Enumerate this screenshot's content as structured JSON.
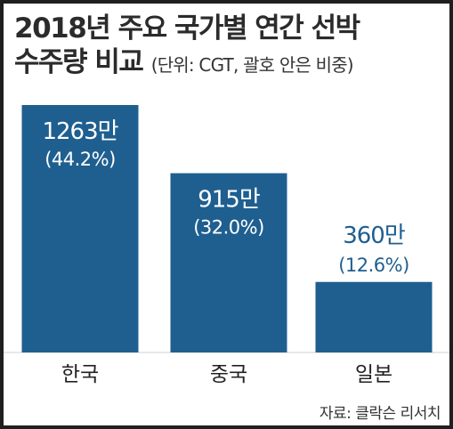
{
  "header": {
    "title_line1": "2018년 주요 국가별 연간 선박",
    "title_line2": "수주량 비교",
    "subtitle": "(단위: CGT, 괄호 안은 비중)"
  },
  "chart_data": {
    "type": "bar",
    "categories": [
      "한국",
      "중국",
      "일본"
    ],
    "values": [
      12630000,
      9150000,
      3600000
    ],
    "value_labels": [
      "1263만",
      "915만",
      "360만"
    ],
    "percent_labels": [
      "(44.2%)",
      "(32.0%)",
      "(12.6%)"
    ],
    "title": "2018년 주요 국가별 연간 선박 수주량 비교",
    "xlabel": "",
    "ylabel": "",
    "ylim": [
      0,
      12630000
    ],
    "grid": false,
    "colors": {
      "bar": "#1f5f90",
      "label_inside": "#ffffff",
      "label_outside": "#1f5f90"
    }
  },
  "footer": {
    "source": "자료: 클락슨 리서치"
  }
}
